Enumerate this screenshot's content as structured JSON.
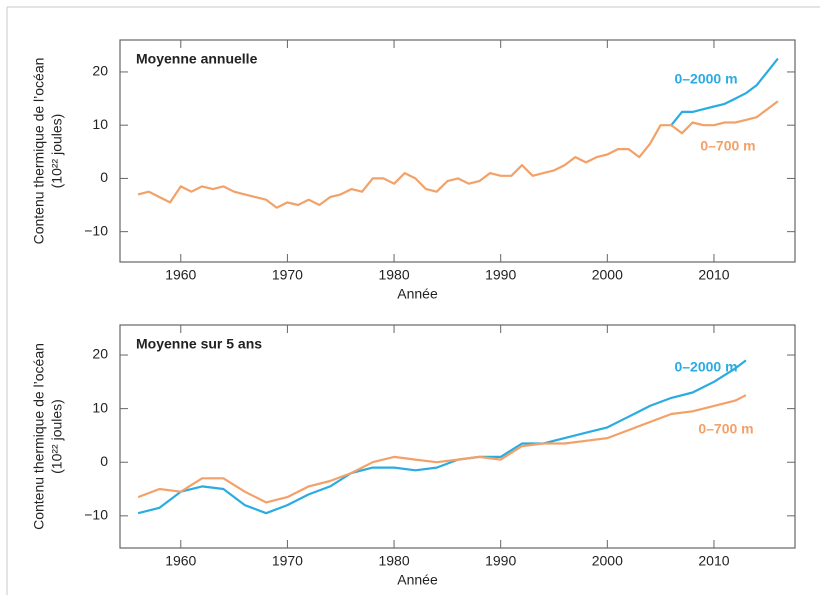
{
  "chart_data": [
    {
      "type": "line",
      "title": "Moyenne annuelle",
      "xlabel": "Année",
      "ylabel": [
        "Contenu thermique de l’océan",
        "(10²² joules)"
      ],
      "xlim": [
        1954.3,
        2017.6
      ],
      "ylim": [
        -15.7,
        26
      ],
      "xticks": [
        1960,
        1970,
        1980,
        1990,
        2000,
        2010
      ],
      "yticks": [
        {
          "value": -10,
          "label": "−10"
        },
        0,
        10,
        20
      ],
      "x": [
        1956,
        1957,
        1958,
        1959,
        1960,
        1961,
        1962,
        1963,
        1964,
        1965,
        1966,
        1967,
        1968,
        1969,
        1970,
        1971,
        1972,
        1973,
        1974,
        1975,
        1976,
        1977,
        1978,
        1979,
        1980,
        1981,
        1982,
        1983,
        1984,
        1985,
        1986,
        1987,
        1988,
        1989,
        1990,
        1991,
        1992,
        1993,
        1994,
        1995,
        1996,
        1997,
        1998,
        1999,
        2000,
        2001,
        2002,
        2003,
        2004,
        2005,
        2006,
        2007,
        2008,
        2009,
        2010,
        2011,
        2012,
        2013,
        2014,
        2015,
        2016
      ],
      "series": [
        {
          "name": "0–2000 m",
          "color": "#2aace2",
          "values": [
            null,
            null,
            null,
            null,
            null,
            null,
            null,
            null,
            null,
            null,
            null,
            null,
            null,
            null,
            null,
            null,
            null,
            null,
            null,
            null,
            null,
            null,
            null,
            null,
            null,
            null,
            null,
            null,
            null,
            null,
            null,
            null,
            null,
            null,
            null,
            null,
            null,
            null,
            null,
            null,
            null,
            null,
            null,
            null,
            null,
            null,
            null,
            null,
            null,
            null,
            10,
            12.5,
            12.5,
            13,
            13.5,
            14,
            15,
            16,
            17.5,
            20,
            22.5
          ]
        },
        {
          "name": "0–700 m",
          "color": "#f2a168",
          "values": [
            -3,
            -2.5,
            -3.5,
            -4.5,
            -1.5,
            -2.5,
            -1.5,
            -2,
            -1.5,
            -2.5,
            -3,
            -3.5,
            -4,
            -5.5,
            -4.5,
            -5,
            -4,
            -5,
            -3.5,
            -3,
            -2,
            -2.5,
            0,
            0,
            -1,
            1,
            0,
            -2,
            -2.5,
            -0.5,
            0,
            -1,
            -0.5,
            1,
            0.5,
            0.5,
            2.5,
            0.5,
            1,
            1.5,
            2.5,
            4,
            3,
            4,
            4.5,
            5.5,
            5.5,
            4,
            6.5,
            10,
            10,
            8.5,
            10.5,
            10,
            10,
            10.5,
            10.5,
            11,
            11.5,
            13,
            14.5
          ]
        }
      ]
    },
    {
      "type": "line",
      "title": "Moyenne sur 5 ans",
      "xlabel": "Année",
      "ylabel": [
        "Contenu thermique de l’océan",
        "(10²² joules)"
      ],
      "xlim": [
        1954.3,
        2017.6
      ],
      "ylim": [
        -16,
        25.6
      ],
      "xticks": [
        1960,
        1970,
        1980,
        1990,
        2000,
        2010
      ],
      "yticks": [
        {
          "value": -10,
          "label": "−10"
        },
        0,
        10,
        20
      ],
      "x": [
        1956,
        1958,
        1960,
        1962,
        1964,
        1966,
        1968,
        1970,
        1972,
        1974,
        1976,
        1978,
        1980,
        1982,
        1984,
        1986,
        1988,
        1990,
        1992,
        1994,
        1996,
        1998,
        2000,
        2002,
        2004,
        2006,
        2008,
        2010,
        2012,
        2013
      ],
      "series": [
        {
          "name": "0–2000 m",
          "color": "#2aace2",
          "values": [
            -9.5,
            -8.5,
            -5.5,
            -4.5,
            -5,
            -8,
            -9.5,
            -8,
            -6,
            -4.5,
            -2,
            -1,
            -1,
            -1.5,
            -1,
            0.5,
            1,
            1,
            3.5,
            3.5,
            4.5,
            5.5,
            6.5,
            8.5,
            10.5,
            12,
            13,
            15,
            17.5,
            19
          ]
        },
        {
          "name": "0–700 m",
          "color": "#f2a168",
          "values": [
            -6.5,
            -5,
            -5.5,
            -3,
            -3,
            -5.5,
            -7.5,
            -6.5,
            -4.5,
            -3.5,
            -2,
            0,
            1,
            0.5,
            0,
            0.5,
            1,
            0.5,
            3,
            3.5,
            3.5,
            4,
            4.5,
            6,
            7.5,
            9,
            9.5,
            10.5,
            11.5,
            12.5
          ]
        }
      ]
    }
  ]
}
